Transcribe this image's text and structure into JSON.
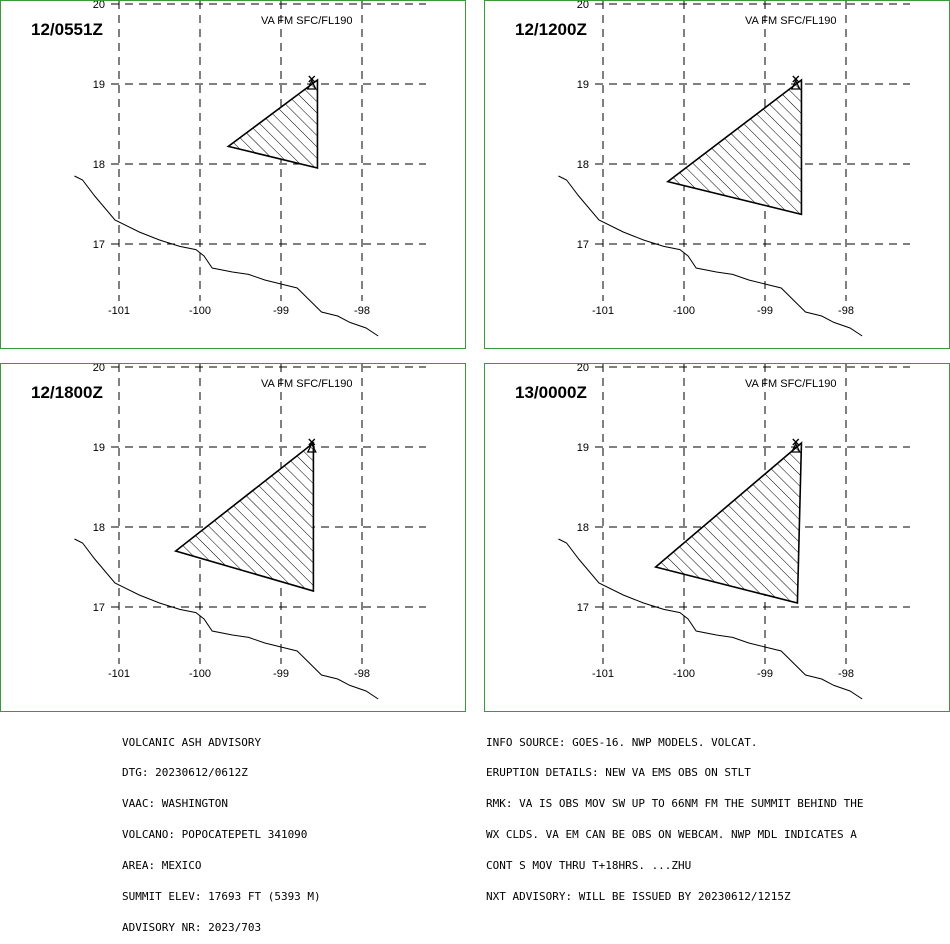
{
  "panels": [
    {
      "time": "12/0551Z",
      "layer": "VA FM SFC/FL190",
      "poly": [
        [
          -98.55,
          19.05
        ],
        [
          -99.65,
          18.22
        ],
        [
          -98.55,
          17.95
        ]
      ]
    },
    {
      "time": "12/1200Z",
      "layer": "VA FM SFC/FL190",
      "poly": [
        [
          -98.55,
          19.05
        ],
        [
          -100.2,
          17.78
        ],
        [
          -98.55,
          17.37
        ]
      ]
    },
    {
      "time": "12/1800Z",
      "layer": "VA FM SFC/FL190",
      "poly": [
        [
          -98.6,
          19.05
        ],
        [
          -100.3,
          17.7
        ],
        [
          -98.6,
          17.2
        ]
      ]
    },
    {
      "time": "13/0000Z",
      "layer": "VA FM SFC/FL190",
      "poly": [
        [
          -98.55,
          19.05
        ],
        [
          -100.35,
          17.5
        ],
        [
          -98.6,
          17.05
        ]
      ]
    }
  ],
  "axes": {
    "lat_ticks": [
      "20",
      "19",
      "18",
      "17"
    ],
    "lon_ticks": [
      "-101",
      "-100",
      "-99",
      "-98"
    ],
    "lat_range": [
      16.1,
      20.0
    ],
    "lon_range": [
      -101.5,
      -97.2
    ]
  },
  "volcano_symbol": "triangle-x-icon",
  "advisory": {
    "left": [
      "VOLCANIC ASH ADVISORY",
      "DTG: 20230612/0612Z",
      "VAAC: WASHINGTON",
      "VOLCANO: POPOCATEPETL 341090",
      "AREA: MEXICO",
      "SUMMIT ELEV: 17693 FT (5393 M)",
      "ADVISORY NR: 2023/703"
    ],
    "right": [
      "INFO SOURCE: GOES-16. NWP MODELS. VOLCAT.",
      "ERUPTION DETAILS: NEW VA EMS OBS ON STLT",
      "RMK: VA IS OBS MOV SW UP TO 66NM FM THE SUMMIT BEHIND THE",
      "WX CLDS. VA EM CAN BE OBS ON WEBCAM. NWP MDL INDICATES A",
      "CONT S MOV THRU T+18HRS. ...ZHU",
      "NXT ADVISORY: WILL BE ISSUED BY 20230612/1215Z"
    ]
  },
  "colors": {
    "panel_border": "#3a9a3a"
  }
}
